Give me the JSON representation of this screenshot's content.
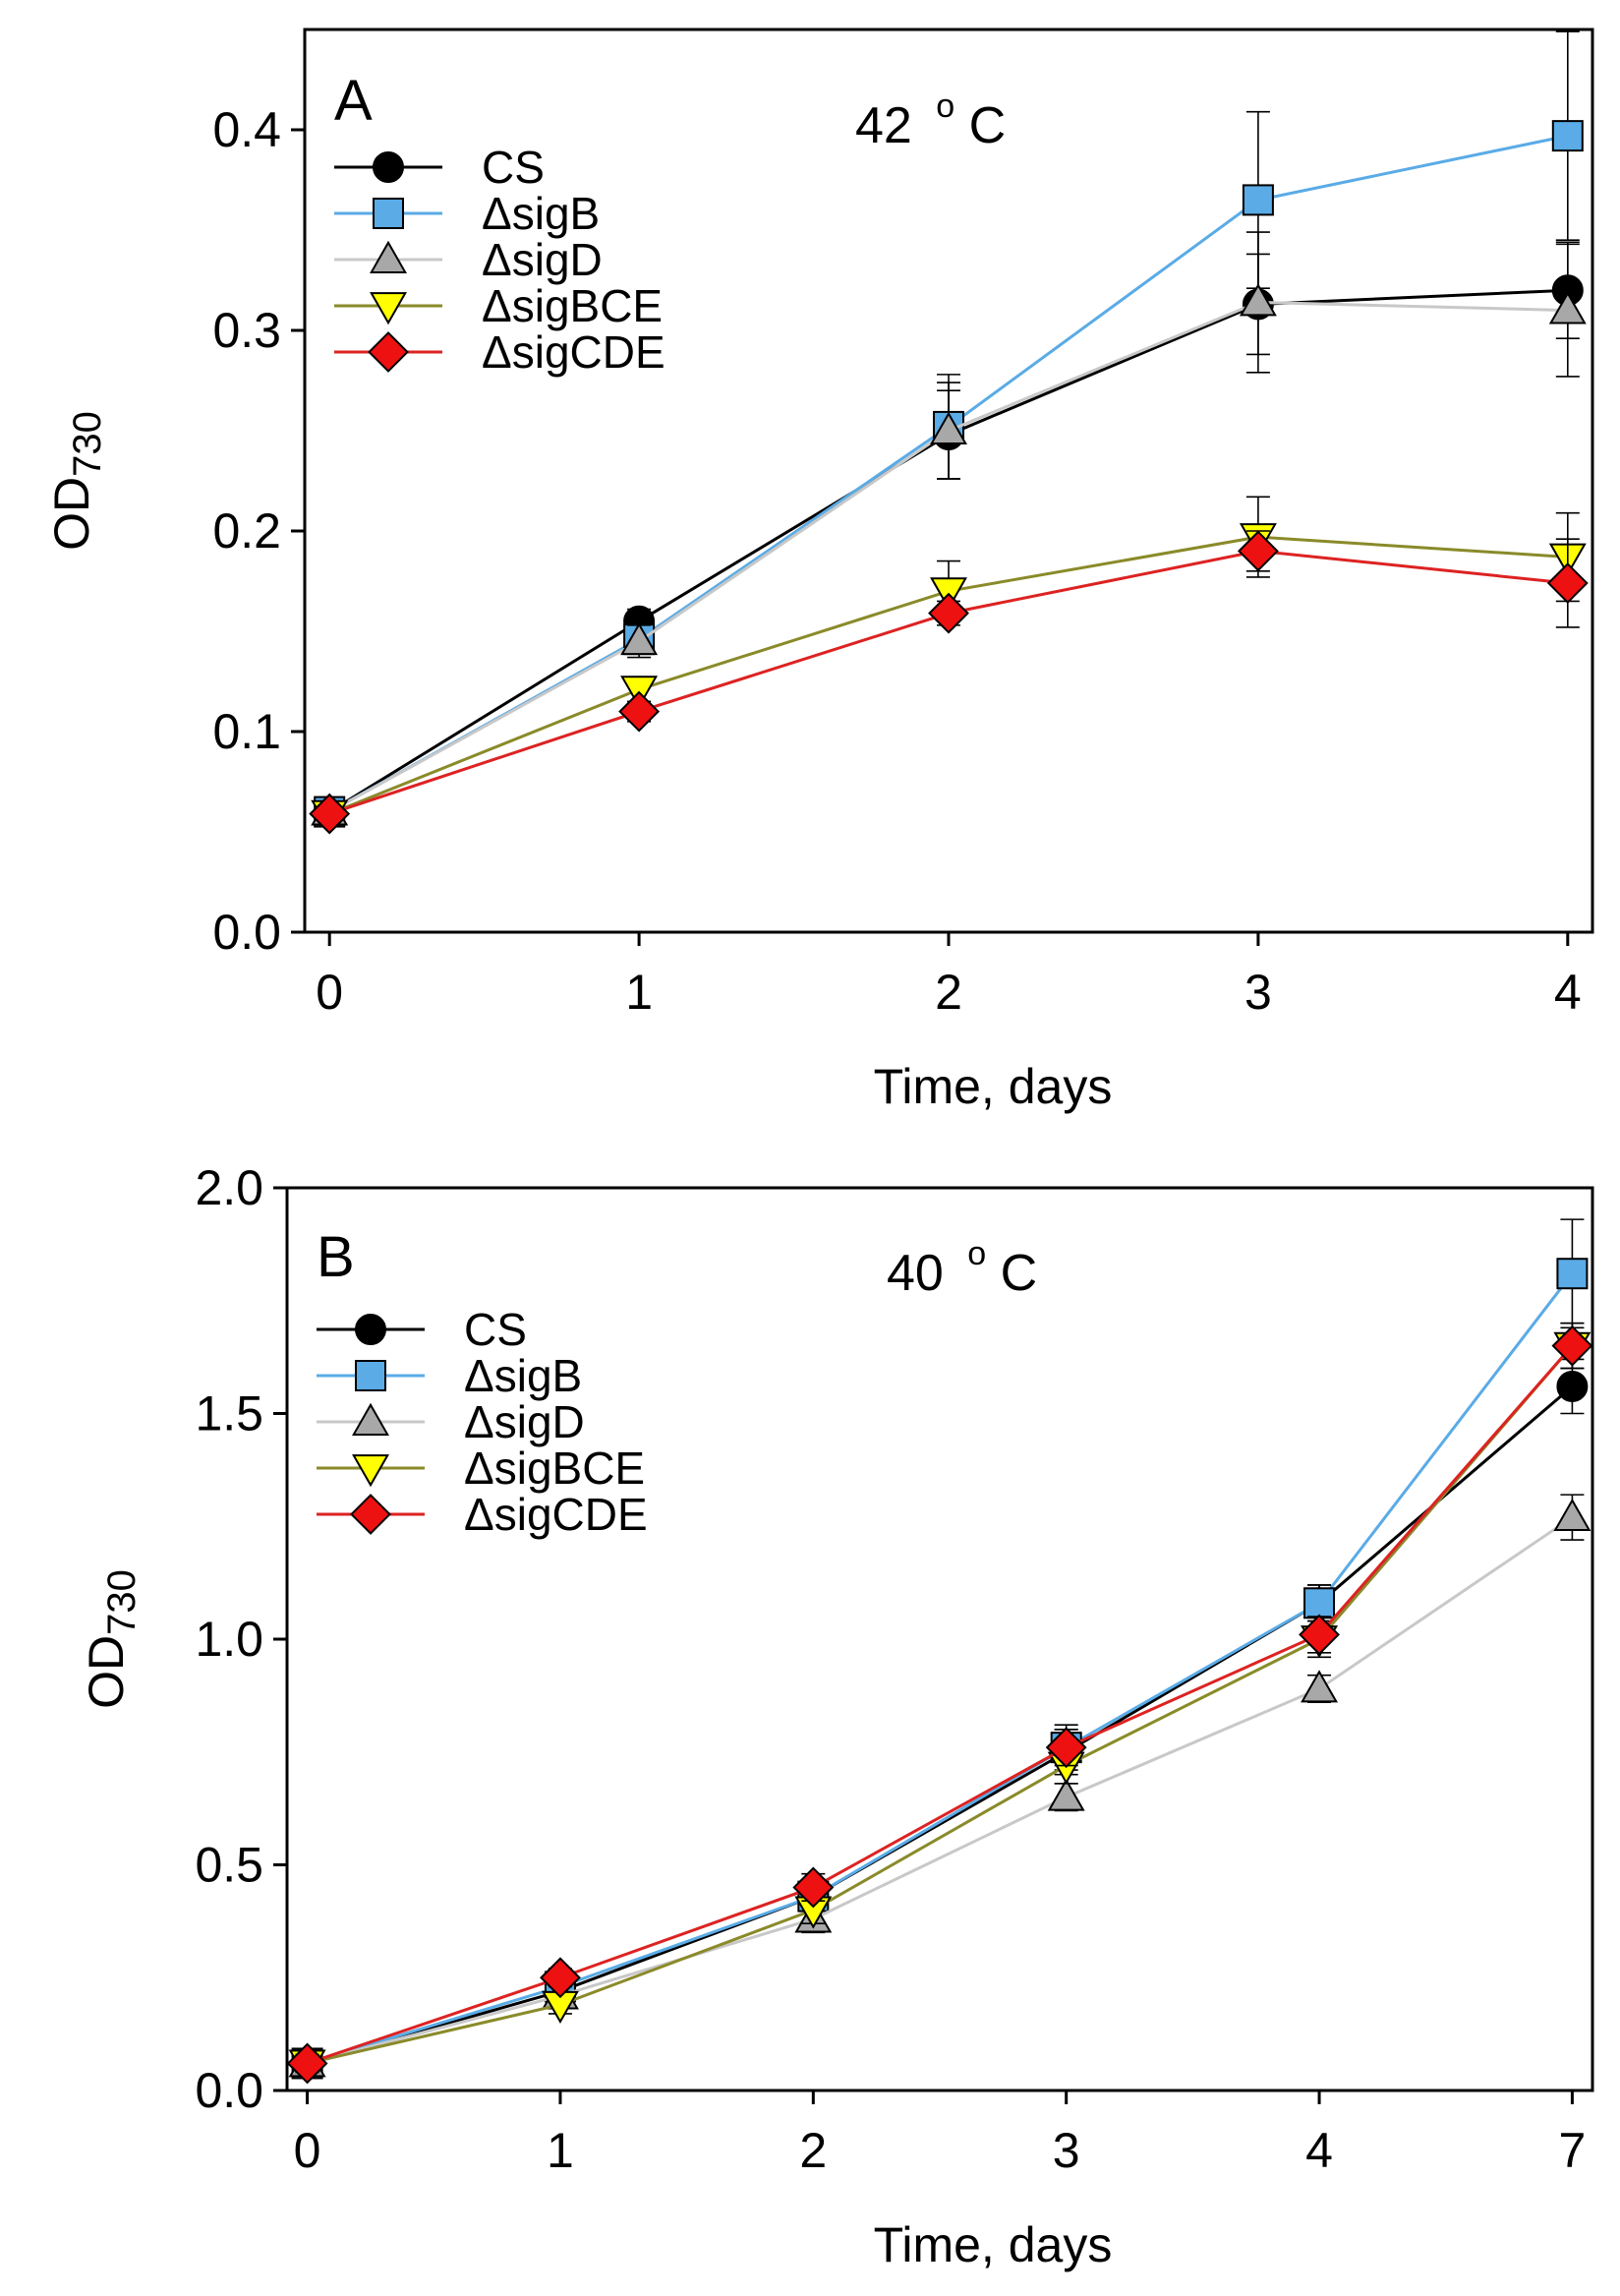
{
  "figure": {
    "background": "#ffffff"
  },
  "series_styles": [
    {
      "name": "CS",
      "marker": "circle",
      "fill": "#000000",
      "line": "#000000"
    },
    {
      "name": "ΔsigB",
      "marker": "square",
      "fill": "#5aabe6",
      "line": "#5aabe6"
    },
    {
      "name": "ΔsigD",
      "marker": "triangle-up",
      "fill": "#a8a8a8",
      "line": "#c8c8c8"
    },
    {
      "name": "ΔsigBCE",
      "marker": "triangle-down",
      "fill": "#ffff00",
      "line": "#8a8a2a"
    },
    {
      "name": "ΔsigCDE",
      "marker": "diamond",
      "fill": "#ee1111",
      "line": "#dd2222"
    }
  ],
  "chart_data": [
    {
      "type": "line",
      "panel": "A",
      "annotation": "42 °C",
      "annotation_value": "42",
      "annotation_unit": "C",
      "xlabel": "Time, days",
      "ylabel": "OD",
      "ylabel_sub": "730",
      "x_ticks": [
        "0",
        "1",
        "2",
        "3",
        "4"
      ],
      "y_ticks": [
        "0.0",
        "0.1",
        "0.2",
        "0.3",
        "0.4"
      ],
      "y_tick_values": [
        0,
        0.1,
        0.2,
        0.3,
        0.4
      ],
      "xlim": [
        -0.08,
        4.08
      ],
      "ylim": [
        0,
        0.45
      ],
      "x": [
        0,
        1,
        2,
        3,
        4
      ],
      "series": [
        {
          "name": "CS",
          "values": [
            0.06,
            0.155,
            0.248,
            0.313,
            0.32
          ],
          "errors": [
            0.004,
            0.006,
            0.022,
            0.025,
            0.024
          ]
        },
        {
          "name": "ΔsigB",
          "values": [
            0.06,
            0.146,
            0.252,
            0.365,
            0.397
          ],
          "errors": [
            0.004,
            0.007,
            0.026,
            0.044,
            0.052
          ]
        },
        {
          "name": "ΔsigD",
          "values": [
            0.06,
            0.145,
            0.25,
            0.314,
            0.31
          ],
          "errors": [
            0.004,
            0.008,
            0.024,
            0.035,
            0.033
          ]
        },
        {
          "name": "ΔsigBCE",
          "values": [
            0.059,
            0.121,
            0.17,
            0.197,
            0.187
          ],
          "errors": [
            0.003,
            0.006,
            0.015,
            0.02,
            0.022
          ]
        },
        {
          "name": "ΔsigCDE",
          "values": [
            0.059,
            0.11,
            0.159,
            0.19,
            0.174
          ],
          "errors": [
            0.003,
            0.005,
            0.006,
            0.01,
            0.022
          ]
        }
      ]
    },
    {
      "type": "line",
      "panel": "B",
      "annotation": "40 °C",
      "annotation_value": "40",
      "annotation_unit": "C",
      "xlabel": "Time, days",
      "ylabel": "OD",
      "ylabel_sub": "730",
      "x_ticks": [
        "0",
        "1",
        "2",
        "3",
        "4",
        "7"
      ],
      "y_ticks": [
        "0.0",
        "0.5",
        "1.0",
        "1.5",
        "2.0"
      ],
      "y_tick_values": [
        0,
        0.5,
        1.0,
        1.5,
        2.0
      ],
      "xlim": [
        -0.08,
        5.08
      ],
      "ylim": [
        0,
        2.0
      ],
      "x": [
        0,
        1,
        2,
        3,
        4,
        7
      ],
      "x_positions": [
        0,
        1,
        2,
        3,
        4,
        5
      ],
      "series": [
        {
          "name": "CS",
          "values": [
            0.06,
            0.22,
            0.43,
            0.75,
            1.08,
            1.56
          ],
          "errors": [
            0.02,
            0.02,
            0.03,
            0.05,
            0.04,
            0.06
          ]
        },
        {
          "name": "ΔsigB",
          "values": [
            0.06,
            0.23,
            0.43,
            0.76,
            1.08,
            1.81
          ],
          "errors": [
            0.02,
            0.02,
            0.03,
            0.05,
            0.04,
            0.12
          ]
        },
        {
          "name": "ΔsigD",
          "values": [
            0.06,
            0.21,
            0.38,
            0.65,
            0.89,
            1.27
          ],
          "errors": [
            0.02,
            0.02,
            0.03,
            0.03,
            0.03,
            0.05
          ]
        },
        {
          "name": "ΔsigBCE",
          "values": [
            0.06,
            0.19,
            0.4,
            0.72,
            1.0,
            1.65
          ],
          "errors": [
            0.02,
            0.02,
            0.03,
            0.04,
            0.04,
            0.05
          ]
        },
        {
          "name": "ΔsigCDE",
          "values": [
            0.06,
            0.25,
            0.45,
            0.76,
            1.01,
            1.65
          ],
          "errors": [
            0.02,
            0.02,
            0.03,
            0.04,
            0.04,
            0.05
          ]
        }
      ]
    }
  ]
}
